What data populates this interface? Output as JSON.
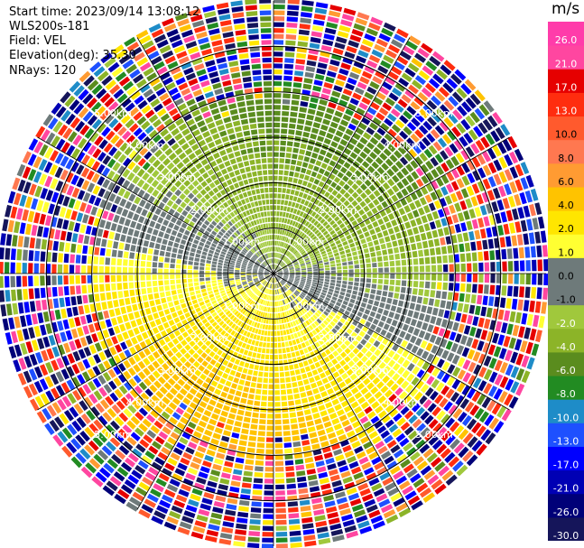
{
  "info": {
    "start_time": "Start time: 2023/09/14 13:08:12",
    "instrument": "WLS200s-181",
    "field": "Field: VEL",
    "elevation": "Elevation(deg): 35.30",
    "nrays": "NRays: 120"
  },
  "chart_data": {
    "type": "heatmap",
    "projection": "polar-ppi",
    "field": "VEL",
    "nrays": 120,
    "units": "m/s",
    "range_rings_km": [
      1.0,
      2.0,
      3.0,
      4.0,
      5.0
    ],
    "range_labels": [
      "1.00km",
      "2.00km",
      "3.00km",
      "4.00km",
      "5.00km"
    ],
    "max_range_km": 6.0,
    "colorbar": {
      "title": "m/s",
      "bounds": [
        -30.0,
        -26.0,
        -21.0,
        -17.0,
        -13.0,
        -10.0,
        -8.0,
        -6.0,
        -4.0,
        -2.0,
        -1.0,
        0.0,
        1.0,
        2.0,
        4.0,
        6.0,
        8.0,
        10.0,
        13.0,
        17.0,
        21.0,
        26.0
      ],
      "tick_labels": [
        "-30.0",
        "-26.0",
        "-21.0",
        "-17.0",
        "-13.0",
        "-10.0",
        "-8.0",
        "-6.0",
        "-4.0",
        "-2.0",
        "-1.0",
        "0.0",
        "1.0",
        "2.0",
        "4.0",
        "6.0",
        "8.0",
        "10.0",
        "13.0",
        "17.0",
        "21.0",
        "26.0"
      ],
      "colors": [
        "#15155a",
        "#000078",
        "#0000b4",
        "#0000ff",
        "#1e50ff",
        "#1e8cc8",
        "#228b22",
        "#5a8c1e",
        "#8cb428",
        "#a0c83c",
        "#6e7a7a",
        "#6e7a7a",
        "#ffff32",
        "#ffe600",
        "#ffc300",
        "#ff9b32",
        "#ff7850",
        "#ff5a2d",
        "#ff2d0f",
        "#e60000",
        "#ff46a0",
        "#ff3caa"
      ]
    }
  }
}
